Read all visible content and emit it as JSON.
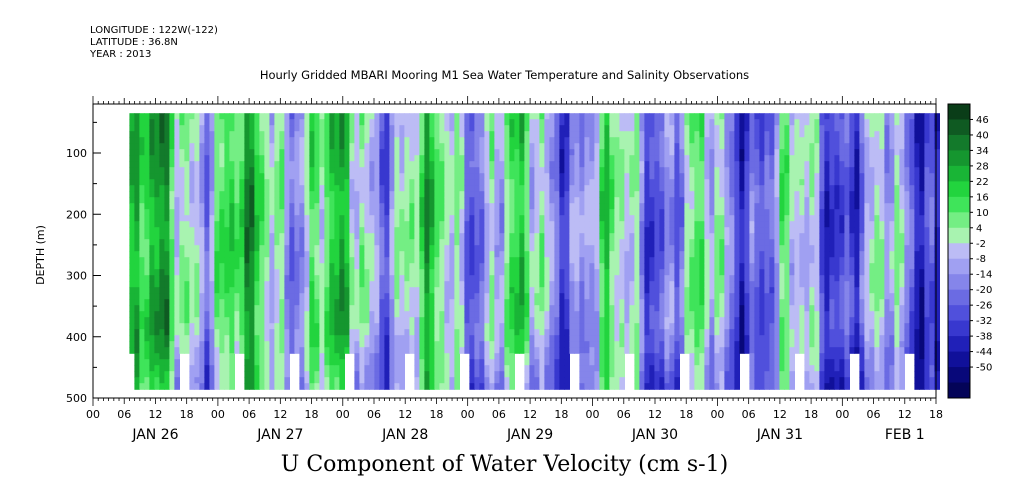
{
  "header": {
    "longitude": "LONGITUDE : 122W(-122)",
    "latitude": "LATITUDE : 36.8N",
    "year": "YEAR : 2013",
    "title": "Hourly Gridded MBARI Mooring M1 Sea Water Temperature and Salinity Observations"
  },
  "chart_data": {
    "type": "heatmap",
    "title": "U Component of Water Velocity (cm s-1)",
    "ylabel": "DEPTH (m)",
    "ylim": [
      500,
      20
    ],
    "yticks": [
      100,
      200,
      300,
      400,
      500
    ],
    "hour_ticks": [
      "00",
      "06",
      "12",
      "18",
      "00",
      "06",
      "12",
      "18",
      "00",
      "06",
      "12",
      "18",
      "00",
      "06",
      "12",
      "18",
      "00",
      "06",
      "12",
      "18",
      "00",
      "06",
      "12",
      "18",
      "00",
      "06",
      "12",
      "18"
    ],
    "day_labels": [
      "JAN 26",
      "JAN 27",
      "JAN 28",
      "JAN 29",
      "JAN 30",
      "JAN 31",
      "FEB  1"
    ],
    "colorbar": {
      "labels": [
        "46",
        "40",
        "34",
        "28",
        "22",
        "16",
        "10",
        "4",
        "-2",
        "-8",
        "-14",
        "-20",
        "-26",
        "-32",
        "-38",
        "-44",
        "-50"
      ],
      "colors": [
        "#0a3d18",
        "#0f5a22",
        "#137a2b",
        "#15962f",
        "#19b536",
        "#22d43e",
        "#3fe45a",
        "#74ee84",
        "#a8f3b0",
        "#bcbcf5",
        "#a0a0f2",
        "#8585ea",
        "#6b6be3",
        "#5050dc",
        "#3838cf",
        "#2020b8",
        "#10109a",
        "#08087a",
        "#040458"
      ]
    },
    "data_start": "JAN 26 07",
    "data_end": "FEB  1 18"
  }
}
